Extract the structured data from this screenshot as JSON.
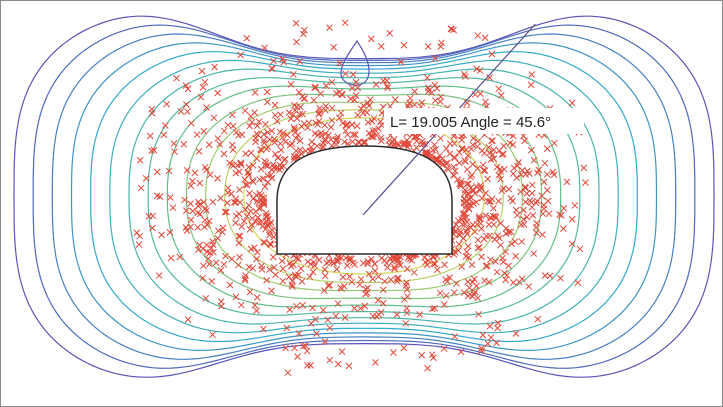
{
  "measurement": {
    "label": "L= 19.005 Angle = 45.6°",
    "length": 19.005,
    "angle_deg": 45.6
  },
  "colors": {
    "background": "#ffffff",
    "opening_fill": "#ffffff",
    "opening_edge": "#2a2a2a",
    "marker": "#e0483a",
    "measure_line": "#5b4a8f",
    "contour_outer": "#5a55b8",
    "contour_mid": "#33a9cc",
    "contour_inner": "#5fbf8a",
    "contour_core": "#d6d65a"
  },
  "plot": {
    "opening_shape": "horseshoe",
    "contour_levels": 13
  }
}
